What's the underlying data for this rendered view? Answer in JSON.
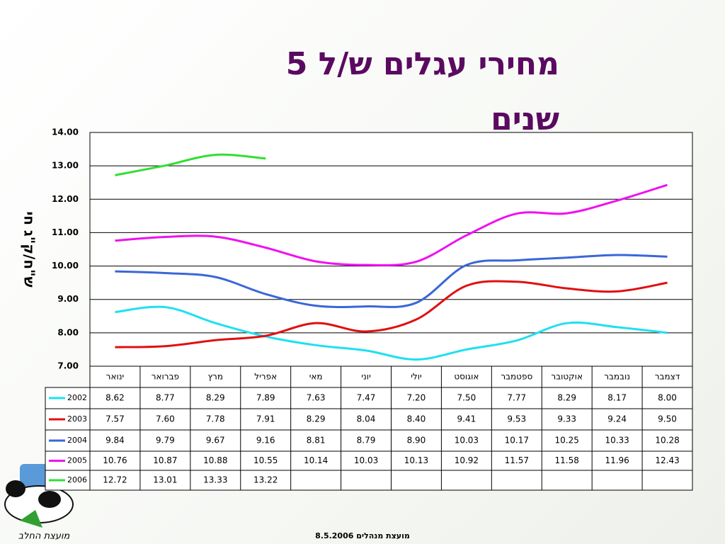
{
  "chart_data": {
    "type": "line",
    "title": "מחירי עגלים ש/ל 5 שנים",
    "y_label": "ש\"ח/ק\"ג חי",
    "footer": "מועצת מנהלים 8.5.2006",
    "logo_text": "מועצת החלב",
    "categories": [
      "ינואר",
      "פברואר",
      "מרץ",
      "אפריל",
      "מאי",
      "יוני",
      "יולי",
      "אוגוסט",
      "ספטמבר",
      "אוקטובר",
      "נובמבר",
      "דצמבר"
    ],
    "ylim": [
      7,
      14
    ],
    "yticks": [
      {
        "value": 7,
        "label": "7.00"
      },
      {
        "value": 8,
        "label": "8.00"
      },
      {
        "value": 9,
        "label": "9.00"
      },
      {
        "value": 10,
        "label": "10.00"
      },
      {
        "value": 11,
        "label": "11.00"
      },
      {
        "value": 12,
        "label": "12.00"
      },
      {
        "value": 13,
        "label": "13.00"
      },
      {
        "value": 14,
        "label": "14.00"
      }
    ],
    "grid": true,
    "series": [
      {
        "name": "2002",
        "color": "#1ee0f0",
        "values": [
          8.62,
          8.77,
          8.29,
          7.89,
          7.63,
          7.47,
          7.2,
          7.5,
          7.77,
          8.29,
          8.17,
          8.0
        ],
        "value_labels": [
          "8.62",
          "8.77",
          "8.29",
          "7.89",
          "7.63",
          "7.47",
          "7.20",
          "7.50",
          "7.77",
          "8.29",
          "8.17",
          "8.00"
        ]
      },
      {
        "name": "2003",
        "color": "#e01010",
        "values": [
          7.57,
          7.6,
          7.78,
          7.91,
          8.29,
          8.04,
          8.4,
          9.41,
          9.53,
          9.33,
          9.24,
          9.5
        ],
        "value_labels": [
          "7.57",
          "7.60",
          "7.78",
          "7.91",
          "8.29",
          "8.04",
          "8.40",
          "9.41",
          "9.53",
          "9.33",
          "9.24",
          "9.50"
        ]
      },
      {
        "name": "2004",
        "color": "#3a66d8",
        "values": [
          9.84,
          9.79,
          9.67,
          9.16,
          8.81,
          8.79,
          8.9,
          10.03,
          10.17,
          10.25,
          10.33,
          10.28
        ],
        "value_labels": [
          "9.84",
          "9.79",
          "9.67",
          "9.16",
          "8.81",
          "8.79",
          "8.90",
          "10.03",
          "10.17",
          "10.25",
          "10.33",
          "10.28"
        ]
      },
      {
        "name": "2005",
        "color": "#f010f0",
        "values": [
          10.76,
          10.87,
          10.88,
          10.55,
          10.14,
          10.03,
          10.13,
          10.92,
          11.57,
          11.58,
          11.96,
          12.43
        ],
        "value_labels": [
          "10.76",
          "10.87",
          "10.88",
          "10.55",
          "10.14",
          "10.03",
          "10.13",
          "10.92",
          "11.57",
          "11.58",
          "11.96",
          "12.43"
        ]
      },
      {
        "name": "2006",
        "color": "#30e030",
        "values": [
          12.72,
          13.01,
          13.33,
          13.22,
          null,
          null,
          null,
          null,
          null,
          null,
          null,
          null
        ],
        "value_labels": [
          "12.72",
          "13.01",
          "13.33",
          "13.22",
          null,
          null,
          null,
          null,
          null,
          null,
          null,
          null
        ]
      }
    ]
  }
}
